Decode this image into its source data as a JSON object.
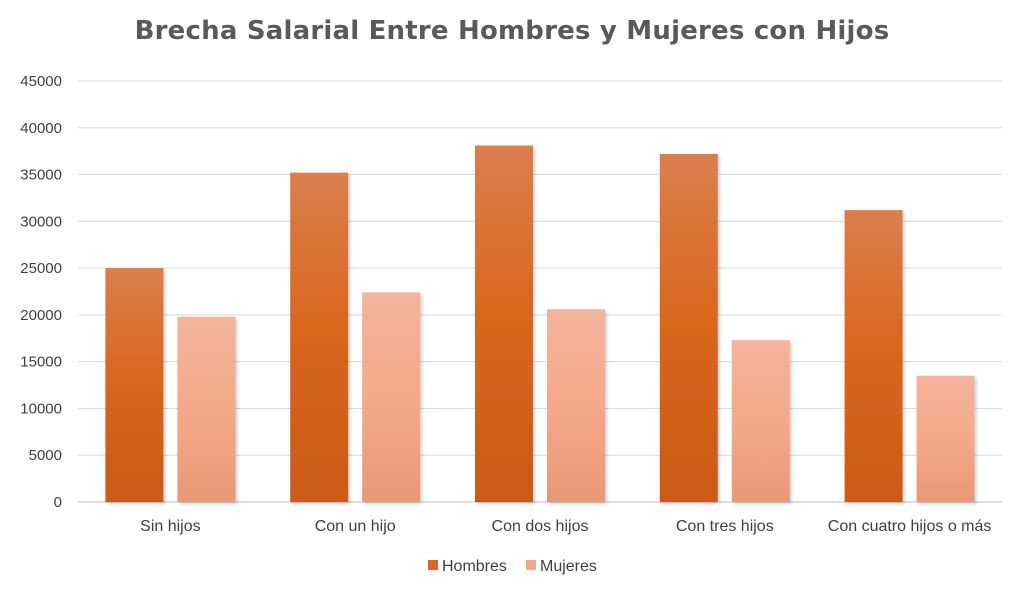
{
  "chart_data": {
    "type": "bar",
    "title": "Brecha Salarial Entre Hombres y Mujeres con Hijos",
    "xlabel": "",
    "ylabel": "",
    "categories": [
      "Sin hijos",
      "Con un hijo",
      "Con dos hijos",
      "Con tres hijos",
      "Con cuatro hijos o más"
    ],
    "series": [
      {
        "name": "Hombres",
        "values": [
          25000,
          35200,
          38100,
          37200,
          31200
        ],
        "color": "#D8692A"
      },
      {
        "name": "Mujeres",
        "values": [
          19800,
          22400,
          20600,
          17300,
          13500
        ],
        "color": "#F2A98C"
      }
    ],
    "ylim": [
      0,
      45000
    ],
    "yticks": [
      0,
      5000,
      10000,
      15000,
      20000,
      25000,
      30000,
      35000,
      40000,
      45000
    ],
    "grid": true,
    "legend": "bottom"
  }
}
